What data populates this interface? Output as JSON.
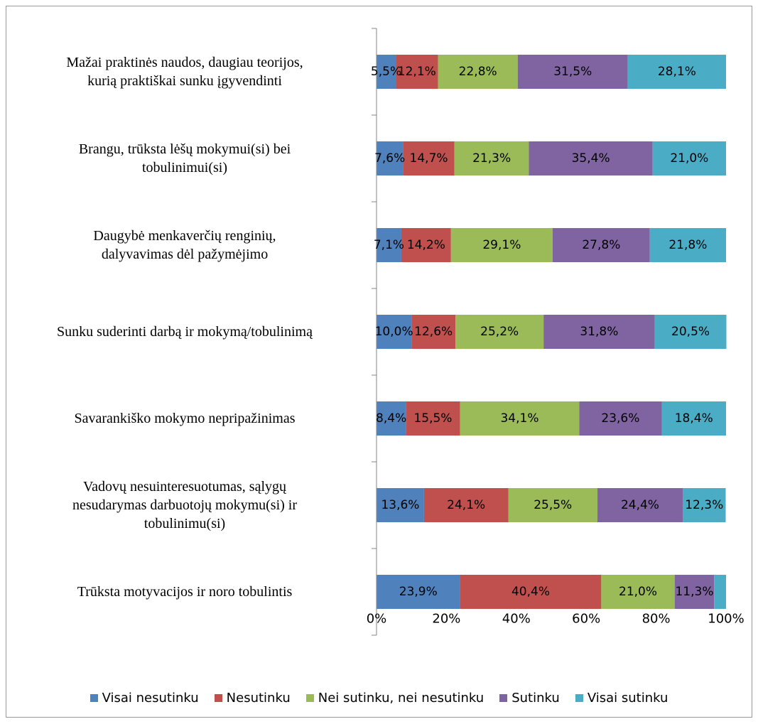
{
  "chart_data": {
    "type": "stacked_bar_horizontal",
    "categories": [
      "Mažai praktinės naudos, daugiau teorijos,\nkurią praktiškai sunku įgyvendinti",
      "Brangu, trūksta lėšų mokymui(si) bei\ntobulinimui(si)",
      "Daugybė menkaverčių renginių,\ndalyvavimas dėl pažymėjimo",
      "Sunku suderinti darbą ir mokymą/tobulinimą",
      "Savarankiško mokymo nepripažinimas",
      "Vadovų nesuinteresuotumas, sąlygų\nnesudarymas darbuotojų mokymu(si) ir\ntobulinimu(si)",
      "Trūksta motyvacijos ir noro tobulintis"
    ],
    "series": [
      {
        "name": "Visai nesutinku",
        "color": "#4f81bd",
        "values": [
          5.5,
          7.6,
          7.1,
          10.0,
          8.4,
          13.6,
          23.9
        ],
        "value_labels": [
          "5,5%",
          "7,6%",
          "7,1%",
          "10,0%",
          "8,4%",
          "13,6%",
          "23,9%"
        ]
      },
      {
        "name": "Nesutinku",
        "color": "#c0504d",
        "values": [
          12.1,
          14.7,
          14.2,
          12.6,
          15.5,
          24.1,
          40.4
        ],
        "value_labels": [
          "12,1%",
          "14,7%",
          "14,2%",
          "12,6%",
          "15,5%",
          "24,1%",
          "40,4%"
        ]
      },
      {
        "name": "Nei sutinku, nei nesutinku",
        "color": "#9bbb59",
        "values": [
          22.8,
          21.3,
          29.1,
          25.2,
          34.1,
          25.5,
          21.0
        ],
        "value_labels": [
          "22,8%",
          "21,3%",
          "29,1%",
          "25,2%",
          "34,1%",
          "25,5%",
          "21,0%"
        ]
      },
      {
        "name": "Sutinku",
        "color": "#8064a2",
        "values": [
          31.5,
          35.4,
          27.8,
          31.8,
          23.6,
          24.4,
          11.3
        ],
        "value_labels": [
          "31,5%",
          "35,4%",
          "27,8%",
          "31,8%",
          "23,6%",
          "24,4%",
          "11,3%"
        ]
      },
      {
        "name": "Visai sutinku",
        "color": "#4bacc6",
        "values": [
          28.1,
          21.0,
          21.8,
          20.5,
          18.4,
          12.3,
          3.4
        ],
        "value_labels": [
          "28,1%",
          "21,0%",
          "21,8%",
          "20,5%",
          "18,4%",
          "12,3%",
          null
        ]
      }
    ],
    "xlim": [
      0,
      100
    ],
    "xticks": [
      {
        "value": 0,
        "label": "0%"
      },
      {
        "value": 20,
        "label": "20%"
      },
      {
        "value": 40,
        "label": "40%"
      },
      {
        "value": 60,
        "label": "60%"
      },
      {
        "value": 80,
        "label": "80%"
      },
      {
        "value": 100,
        "label": "100%"
      }
    ],
    "legend": "bottom"
  }
}
